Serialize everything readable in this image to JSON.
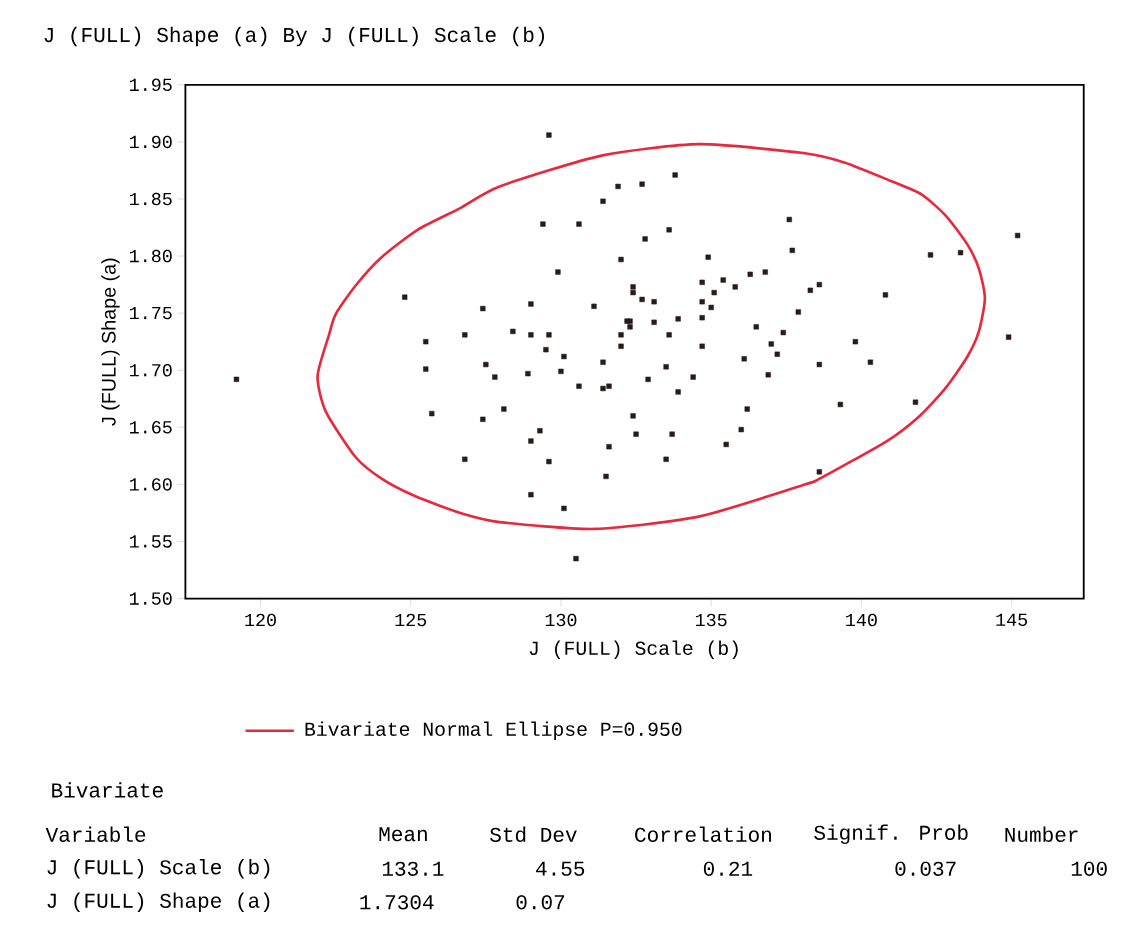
{
  "chart_data": {
    "type": "scatter",
    "title": "J (FULL) Shape (a) By J (FULL) Scale (b)",
    "xlabel": "J (FULL) Scale (b)",
    "ylabel": "J (FULL) Shape (a)",
    "xlim": [
      117.5,
      147.4
    ],
    "ylim": [
      1.5,
      1.95
    ],
    "xticks": [
      120,
      125,
      130,
      135,
      140,
      145
    ],
    "yticks": [
      {
        "value": 1.5,
        "label": "1.50"
      },
      {
        "value": 1.55,
        "label": "1.55"
      },
      {
        "value": 1.6,
        "label": "1.60"
      },
      {
        "value": 1.65,
        "label": "1.65"
      },
      {
        "value": 1.7,
        "label": "1.70"
      },
      {
        "value": 1.75,
        "label": "1.75"
      },
      {
        "value": 1.8,
        "label": "1.80"
      },
      {
        "value": 1.85,
        "label": "1.85"
      },
      {
        "value": 1.9,
        "label": "1.90"
      },
      {
        "value": 1.95,
        "label": "1.95"
      }
    ],
    "marker": "square",
    "color": "#2b1a1a",
    "x": [
      129.6,
      133.8,
      131.9,
      132.7,
      131.4,
      129.4,
      130.6,
      133.6,
      132.8,
      137.6,
      137.7,
      132.0,
      134.9,
      129.9,
      136.3,
      136.8,
      134.7,
      135.4,
      135.8,
      132.4,
      132.4,
      135.1,
      129.0,
      131.1,
      132.7,
      133.1,
      134.7,
      135.0,
      137.9,
      134.7,
      133.9,
      133.1,
      132.2,
      132.3,
      132.3,
      128.4,
      129.0,
      129.6,
      132.0,
      133.6,
      136.5,
      137.4,
      137.0,
      129.5,
      132.0,
      134.7,
      145.2,
      142.3,
      143.3,
      138.6,
      138.3,
      140.8,
      139.8,
      144.9,
      124.8,
      127.4,
      126.8,
      125.5,
      119.2,
      125.5,
      127.5,
      127.8,
      125.7,
      127.4,
      126.8,
      137.2,
      136.1,
      136.9,
      130.1,
      131.4,
      128.9,
      130.0,
      133.5,
      130.6,
      131.4,
      131.6,
      132.9,
      134.4,
      133.9,
      128.1,
      136.2,
      132.4,
      136.0,
      129.3,
      132.5,
      133.7,
      129.0,
      131.6,
      135.5,
      129.6,
      133.5,
      131.5,
      129.0,
      130.1,
      130.5,
      138.6,
      140.3,
      139.3,
      141.8,
      138.6
    ],
    "values": [
      1.906,
      1.871,
      1.861,
      1.863,
      1.848,
      1.828,
      1.828,
      1.823,
      1.815,
      1.832,
      1.805,
      1.797,
      1.799,
      1.786,
      1.784,
      1.786,
      1.777,
      1.779,
      1.773,
      1.773,
      1.768,
      1.768,
      1.758,
      1.756,
      1.762,
      1.76,
      1.76,
      1.755,
      1.751,
      1.746,
      1.745,
      1.742,
      1.743,
      1.743,
      1.738,
      1.734,
      1.731,
      1.731,
      1.731,
      1.731,
      1.738,
      1.733,
      1.723,
      1.718,
      1.721,
      1.721,
      1.818,
      1.801,
      1.803,
      1.775,
      1.77,
      1.766,
      1.725,
      1.729,
      1.764,
      1.754,
      1.731,
      1.725,
      1.692,
      1.701,
      1.705,
      1.694,
      1.662,
      1.657,
      1.622,
      1.714,
      1.71,
      1.696,
      1.712,
      1.707,
      1.697,
      1.699,
      1.703,
      1.686,
      1.684,
      1.686,
      1.692,
      1.694,
      1.681,
      1.666,
      1.666,
      1.66,
      1.648,
      1.647,
      1.644,
      1.644,
      1.638,
      1.633,
      1.635,
      1.62,
      1.622,
      1.607,
      1.591,
      1.579,
      1.535,
      1.705,
      1.707,
      1.67,
      1.672,
      1.611
    ],
    "annotations": [
      "Bivariate Normal Ellipse P=0.950",
      "Bivariate",
      "Variable",
      "Mean",
      "Std Dev",
      "Correlation",
      "Signif. Prob",
      "Number",
      "J (FULL) Scale (b)",
      "133.1",
      "4.55",
      "0.21",
      "0.037",
      "100",
      "J (FULL) Shape (a)",
      "1.7304",
      "0.07"
    ]
  }
}
